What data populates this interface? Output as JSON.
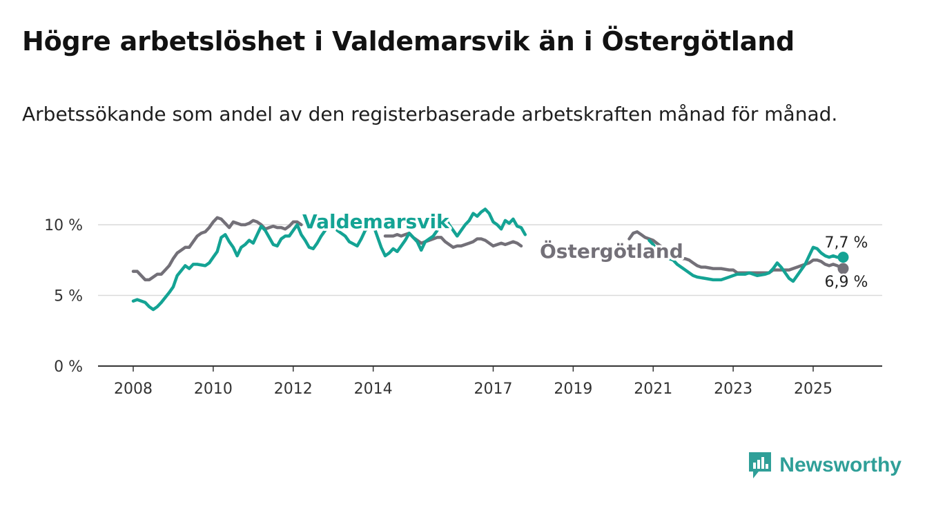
{
  "title": "Högre arbetslöshet i Valdemarsvik än i Östergötland",
  "subtitle": "Arbetssökande som andel av den registerbaserade arbetskraften månad för månad.",
  "brand": {
    "name": "Newsworthy"
  },
  "colors": {
    "valdemarsvik": "#14a394",
    "ostergotland": "#737078",
    "grid": "#d9d9d9",
    "axis": "#333333"
  },
  "chart_data": {
    "type": "line",
    "x_unit": "year",
    "xlim": [
      2008,
      2026.5
    ],
    "ylim": [
      0,
      11
    ],
    "y_ticks": [
      0,
      5,
      10
    ],
    "y_tick_labels": [
      "0 %",
      "5 %",
      "10 %"
    ],
    "x_ticks": [
      2008,
      2010,
      2012,
      2014,
      2017,
      2019,
      2021,
      2023,
      2025
    ],
    "x_tick_labels": [
      "2008",
      "2010",
      "2012",
      "2014",
      "2017",
      "2019",
      "2021",
      "2023",
      "2025"
    ],
    "series": [
      {
        "name": "Valdemarsvik",
        "label": "Valdemarsvik",
        "end_label": "7,7 %",
        "points": [
          [
            2008.0,
            4.6
          ],
          [
            2008.1,
            4.7
          ],
          [
            2008.3,
            4.5
          ],
          [
            2008.4,
            4.2
          ],
          [
            2008.5,
            4.0
          ],
          [
            2008.6,
            4.2
          ],
          [
            2008.7,
            4.5
          ],
          [
            2008.9,
            5.2
          ],
          [
            2009.0,
            5.6
          ],
          [
            2009.1,
            6.4
          ],
          [
            2009.3,
            7.1
          ],
          [
            2009.4,
            6.9
          ],
          [
            2009.5,
            7.2
          ],
          [
            2009.6,
            7.2
          ],
          [
            2009.8,
            7.1
          ],
          [
            2009.9,
            7.3
          ],
          [
            2010.0,
            7.7
          ],
          [
            2010.1,
            8.1
          ],
          [
            2010.2,
            9.1
          ],
          [
            2010.3,
            9.3
          ],
          [
            2010.4,
            8.8
          ],
          [
            2010.5,
            8.4
          ],
          [
            2010.6,
            7.8
          ],
          [
            2010.7,
            8.4
          ],
          [
            2010.8,
            8.6
          ],
          [
            2010.9,
            8.9
          ],
          [
            2011.0,
            8.7
          ],
          [
            2011.1,
            9.3
          ],
          [
            2011.2,
            9.9
          ],
          [
            2011.3,
            9.6
          ],
          [
            2011.4,
            9.1
          ],
          [
            2011.5,
            8.6
          ],
          [
            2011.6,
            8.5
          ],
          [
            2011.7,
            9.0
          ],
          [
            2011.8,
            9.2
          ],
          [
            2011.9,
            9.2
          ],
          [
            2012.0,
            9.6
          ],
          [
            2012.1,
            10.0
          ],
          [
            2012.2,
            9.3
          ],
          [
            2012.3,
            8.9
          ],
          [
            2012.4,
            8.4
          ],
          [
            2012.5,
            8.3
          ],
          [
            2012.6,
            8.7
          ],
          [
            2012.7,
            9.2
          ],
          [
            2012.8,
            9.6
          ],
          [
            2012.9,
            10.0
          ],
          [
            2013.0,
            10.2
          ],
          [
            2013.1,
            9.6
          ],
          [
            2013.3,
            9.2
          ],
          [
            2013.4,
            8.8
          ],
          [
            2013.6,
            8.5
          ],
          [
            2013.7,
            9.0
          ],
          [
            2013.8,
            9.6
          ],
          [
            2014.0,
            10.0
          ],
          [
            2014.1,
            9.2
          ],
          [
            2014.2,
            8.4
          ],
          [
            2014.3,
            7.8
          ],
          [
            2014.4,
            8.0
          ],
          [
            2014.5,
            8.3
          ],
          [
            2014.6,
            8.1
          ],
          [
            2014.7,
            8.5
          ],
          [
            2014.8,
            8.9
          ],
          [
            2014.9,
            9.4
          ],
          [
            2015.0,
            9.1
          ],
          [
            2015.1,
            8.8
          ],
          [
            2015.2,
            8.2
          ],
          [
            2015.3,
            8.8
          ],
          [
            2015.4,
            9.0
          ],
          [
            2015.5,
            9.2
          ],
          [
            2015.6,
            9.6
          ],
          [
            2015.7,
            10.2
          ],
          [
            2015.8,
            10.5
          ],
          [
            2015.9,
            10.0
          ],
          [
            2016.0,
            9.6
          ],
          [
            2016.1,
            9.2
          ],
          [
            2016.2,
            9.6
          ],
          [
            2016.3,
            10.0
          ],
          [
            2016.4,
            10.3
          ],
          [
            2016.5,
            10.8
          ],
          [
            2016.6,
            10.6
          ],
          [
            2016.7,
            10.9
          ],
          [
            2016.8,
            11.1
          ],
          [
            2016.9,
            10.8
          ],
          [
            2017.0,
            10.2
          ],
          [
            2017.1,
            10.0
          ],
          [
            2017.2,
            9.7
          ],
          [
            2017.3,
            10.3
          ],
          [
            2017.4,
            10.1
          ],
          [
            2017.5,
            10.4
          ],
          [
            2017.6,
            9.9
          ],
          [
            2017.7,
            9.8
          ],
          [
            2017.8,
            9.3
          ],
          [
            2020.9,
            8.9
          ],
          [
            2021.0,
            8.6
          ],
          [
            2021.1,
            8.2
          ],
          [
            2021.2,
            8.0
          ],
          [
            2021.3,
            7.7
          ],
          [
            2021.5,
            7.5
          ],
          [
            2021.6,
            7.2
          ],
          [
            2021.7,
            7.0
          ],
          [
            2021.8,
            6.8
          ],
          [
            2021.9,
            6.6
          ],
          [
            2022.0,
            6.4
          ],
          [
            2022.1,
            6.3
          ],
          [
            2022.3,
            6.2
          ],
          [
            2022.5,
            6.1
          ],
          [
            2022.7,
            6.1
          ],
          [
            2022.9,
            6.3
          ],
          [
            2023.0,
            6.4
          ],
          [
            2023.1,
            6.5
          ],
          [
            2023.3,
            6.5
          ],
          [
            2023.4,
            6.6
          ],
          [
            2023.5,
            6.5
          ],
          [
            2023.6,
            6.4
          ],
          [
            2023.8,
            6.5
          ],
          [
            2023.9,
            6.6
          ],
          [
            2024.0,
            6.9
          ],
          [
            2024.1,
            7.3
          ],
          [
            2024.2,
            7.0
          ],
          [
            2024.3,
            6.6
          ],
          [
            2024.4,
            6.2
          ],
          [
            2024.5,
            6.0
          ],
          [
            2024.6,
            6.4
          ],
          [
            2024.7,
            6.8
          ],
          [
            2024.8,
            7.2
          ],
          [
            2024.9,
            7.8
          ],
          [
            2025.0,
            8.4
          ],
          [
            2025.1,
            8.3
          ],
          [
            2025.2,
            8.0
          ],
          [
            2025.3,
            7.8
          ],
          [
            2025.4,
            7.7
          ],
          [
            2025.5,
            7.8
          ],
          [
            2025.6,
            7.7
          ],
          [
            2025.75,
            7.7
          ]
        ]
      },
      {
        "name": "Östergötland",
        "label": "Östergötland",
        "end_label": "6,9 %",
        "points": [
          [
            2008.0,
            6.7
          ],
          [
            2008.1,
            6.7
          ],
          [
            2008.2,
            6.4
          ],
          [
            2008.3,
            6.1
          ],
          [
            2008.4,
            6.1
          ],
          [
            2008.5,
            6.3
          ],
          [
            2008.6,
            6.5
          ],
          [
            2008.7,
            6.5
          ],
          [
            2008.8,
            6.8
          ],
          [
            2008.9,
            7.1
          ],
          [
            2009.0,
            7.6
          ],
          [
            2009.1,
            8.0
          ],
          [
            2009.2,
            8.2
          ],
          [
            2009.3,
            8.4
          ],
          [
            2009.4,
            8.4
          ],
          [
            2009.5,
            8.8
          ],
          [
            2009.6,
            9.2
          ],
          [
            2009.7,
            9.4
          ],
          [
            2009.8,
            9.5
          ],
          [
            2009.9,
            9.8
          ],
          [
            2010.0,
            10.2
          ],
          [
            2010.1,
            10.5
          ],
          [
            2010.2,
            10.4
          ],
          [
            2010.3,
            10.1
          ],
          [
            2010.4,
            9.8
          ],
          [
            2010.5,
            10.2
          ],
          [
            2010.6,
            10.1
          ],
          [
            2010.7,
            10.0
          ],
          [
            2010.8,
            10.0
          ],
          [
            2010.9,
            10.1
          ],
          [
            2011.0,
            10.3
          ],
          [
            2011.1,
            10.2
          ],
          [
            2011.2,
            10.0
          ],
          [
            2011.3,
            9.7
          ],
          [
            2011.4,
            9.8
          ],
          [
            2011.5,
            9.9
          ],
          [
            2011.6,
            9.8
          ],
          [
            2011.7,
            9.8
          ],
          [
            2011.8,
            9.7
          ],
          [
            2011.9,
            9.9
          ],
          [
            2012.0,
            10.2
          ],
          [
            2012.1,
            10.2
          ],
          [
            2012.2,
            10.0
          ],
          [
            2014.3,
            9.2
          ],
          [
            2014.4,
            9.2
          ],
          [
            2014.5,
            9.2
          ],
          [
            2014.6,
            9.3
          ],
          [
            2014.7,
            9.2
          ],
          [
            2014.8,
            9.3
          ],
          [
            2014.9,
            9.4
          ],
          [
            2015.0,
            9.1
          ],
          [
            2015.1,
            8.9
          ],
          [
            2015.2,
            8.7
          ],
          [
            2015.3,
            8.8
          ],
          [
            2015.4,
            8.9
          ],
          [
            2015.5,
            9.0
          ],
          [
            2015.6,
            9.1
          ],
          [
            2015.7,
            9.1
          ],
          [
            2015.8,
            8.8
          ],
          [
            2015.9,
            8.6
          ],
          [
            2016.0,
            8.4
          ],
          [
            2016.1,
            8.5
          ],
          [
            2016.2,
            8.5
          ],
          [
            2016.3,
            8.6
          ],
          [
            2016.4,
            8.7
          ],
          [
            2016.5,
            8.8
          ],
          [
            2016.6,
            9.0
          ],
          [
            2016.7,
            9.0
          ],
          [
            2016.8,
            8.9
          ],
          [
            2016.9,
            8.7
          ],
          [
            2017.0,
            8.5
          ],
          [
            2017.1,
            8.6
          ],
          [
            2017.2,
            8.7
          ],
          [
            2017.3,
            8.6
          ],
          [
            2017.4,
            8.7
          ],
          [
            2017.5,
            8.8
          ],
          [
            2017.6,
            8.7
          ],
          [
            2017.7,
            8.5
          ],
          [
            2020.4,
            9.0
          ],
          [
            2020.5,
            9.4
          ],
          [
            2020.6,
            9.5
          ],
          [
            2020.7,
            9.3
          ],
          [
            2020.8,
            9.1
          ],
          [
            2020.9,
            9.0
          ],
          [
            2021.0,
            8.9
          ],
          [
            2021.5,
            7.8
          ],
          [
            2021.6,
            7.7
          ],
          [
            2021.7,
            7.6
          ],
          [
            2021.8,
            7.6
          ],
          [
            2021.9,
            7.5
          ],
          [
            2022.0,
            7.3
          ],
          [
            2022.1,
            7.1
          ],
          [
            2022.2,
            7.0
          ],
          [
            2022.3,
            7.0
          ],
          [
            2022.5,
            6.9
          ],
          [
            2022.7,
            6.9
          ],
          [
            2022.9,
            6.8
          ],
          [
            2023.0,
            6.8
          ],
          [
            2023.1,
            6.6
          ],
          [
            2023.3,
            6.6
          ],
          [
            2023.5,
            6.6
          ],
          [
            2023.7,
            6.6
          ],
          [
            2023.9,
            6.6
          ],
          [
            2024.0,
            6.8
          ],
          [
            2024.2,
            6.8
          ],
          [
            2024.4,
            6.8
          ],
          [
            2024.6,
            7.0
          ],
          [
            2024.8,
            7.2
          ],
          [
            2024.9,
            7.3
          ],
          [
            2025.0,
            7.5
          ],
          [
            2025.1,
            7.5
          ],
          [
            2025.2,
            7.4
          ],
          [
            2025.3,
            7.2
          ],
          [
            2025.4,
            7.1
          ],
          [
            2025.5,
            7.2
          ],
          [
            2025.6,
            7.1
          ],
          [
            2025.75,
            6.9
          ]
        ]
      }
    ]
  }
}
